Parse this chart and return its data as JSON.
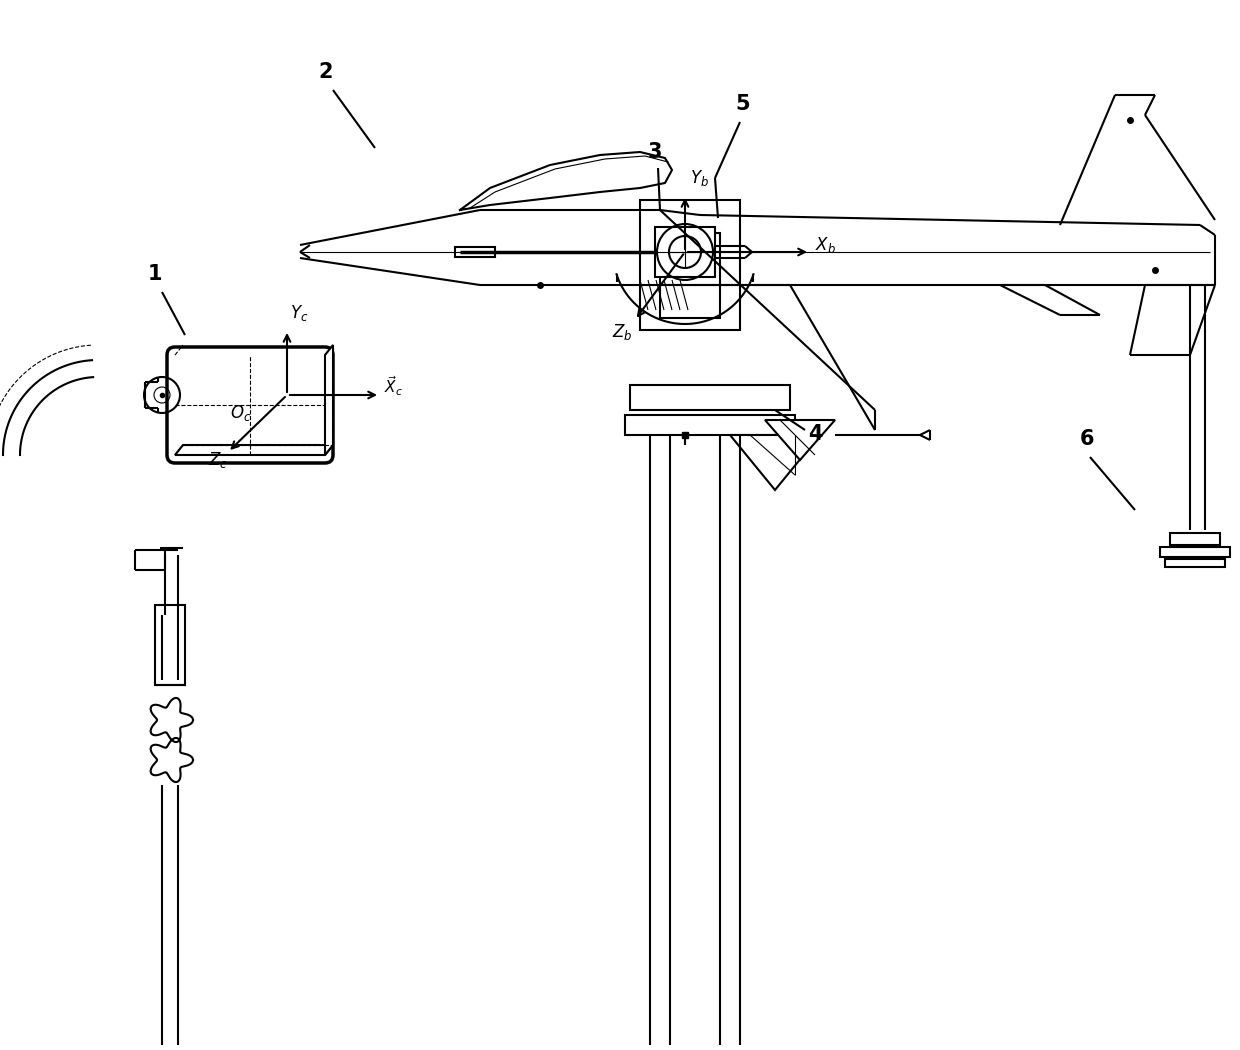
{
  "bg_color": "#ffffff",
  "lc": "#000000",
  "lw": 1.5,
  "tlw": 0.8,
  "thklw": 2.5
}
